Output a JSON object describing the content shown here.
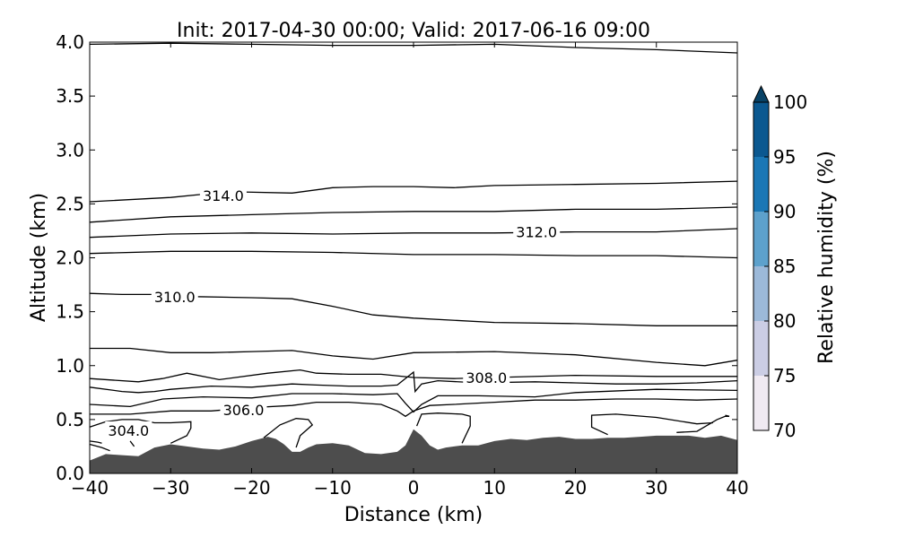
{
  "chart_data": {
    "type": "contour",
    "title": "Init: 2017-04-30 00:00; Valid: 2017-06-16 09:00",
    "xlabel": "Distance (km)",
    "ylabel": "Altitude (km)",
    "xlim": [
      -40,
      40
    ],
    "ylim": [
      0.0,
      4.0
    ],
    "xticks": [
      -40,
      -30,
      -20,
      -10,
      0,
      10,
      20,
      30,
      40
    ],
    "xtick_labels": [
      "−40",
      "−30",
      "−20",
      "−10",
      "0",
      "10",
      "20",
      "30",
      "40"
    ],
    "yticks": [
      0.0,
      0.5,
      1.0,
      1.5,
      2.0,
      2.5,
      3.0,
      3.5,
      4.0
    ],
    "ytick_labels": [
      "0.0",
      "0.5",
      "1.0",
      "1.5",
      "2.0",
      "2.5",
      "3.0",
      "3.5",
      "4.0"
    ],
    "terrain": {
      "color": "#4d4d4d",
      "x": [
        -40,
        -38,
        -36,
        -34,
        -32,
        -30,
        -28,
        -26,
        -24,
        -22,
        -20,
        -18,
        -17,
        -16,
        -15,
        -14,
        -13,
        -12,
        -10,
        -8,
        -6,
        -4,
        -2,
        -1,
        0,
        1,
        2,
        3,
        4,
        6,
        8,
        10,
        12,
        14,
        16,
        18,
        20,
        22,
        24,
        26,
        28,
        30,
        32,
        34,
        36,
        38,
        40
      ],
      "y": [
        0.12,
        0.18,
        0.17,
        0.16,
        0.24,
        0.27,
        0.25,
        0.23,
        0.22,
        0.25,
        0.3,
        0.34,
        0.32,
        0.27,
        0.2,
        0.2,
        0.24,
        0.27,
        0.28,
        0.26,
        0.19,
        0.18,
        0.2,
        0.26,
        0.41,
        0.35,
        0.26,
        0.22,
        0.24,
        0.26,
        0.26,
        0.3,
        0.32,
        0.31,
        0.33,
        0.34,
        0.32,
        0.32,
        0.33,
        0.33,
        0.34,
        0.35,
        0.35,
        0.35,
        0.33,
        0.35,
        0.31
      ]
    },
    "contours": [
      {
        "x": [
          -40,
          -30,
          -20,
          -10,
          0,
          10,
          20,
          30,
          40
        ],
        "y": [
          3.98,
          3.99,
          3.98,
          3.97,
          3.97,
          3.98,
          3.95,
          3.93,
          3.9
        ]
      },
      {
        "x": [
          -40,
          -30,
          -26,
          -21,
          -15,
          -10,
          -5,
          0,
          5,
          10,
          20,
          30,
          40
        ],
        "y": [
          2.52,
          2.56,
          2.59,
          2.61,
          2.6,
          2.65,
          2.66,
          2.66,
          2.65,
          2.67,
          2.68,
          2.69,
          2.71
        ]
      },
      {
        "x": [
          -40,
          -30,
          -20,
          -10,
          0,
          10,
          20,
          30,
          40
        ],
        "y": [
          2.33,
          2.38,
          2.4,
          2.42,
          2.43,
          2.43,
          2.45,
          2.45,
          2.47
        ]
      },
      {
        "x": [
          -40,
          -30,
          -20,
          -10,
          0,
          10,
          20,
          30,
          40
        ],
        "y": [
          2.19,
          2.22,
          2.23,
          2.22,
          2.23,
          2.23,
          2.24,
          2.24,
          2.27
        ]
      },
      {
        "x": [
          -40,
          -30,
          -20,
          -10,
          0,
          10,
          20,
          30,
          40
        ],
        "y": [
          2.04,
          2.06,
          2.06,
          2.05,
          2.03,
          2.03,
          2.02,
          2.02,
          2.0
        ]
      },
      {
        "x": [
          -40,
          -36,
          -32,
          -27,
          -20,
          -15,
          -10,
          -5,
          0,
          10,
          20,
          30,
          40
        ],
        "y": [
          1.67,
          1.66,
          1.66,
          1.64,
          1.63,
          1.62,
          1.55,
          1.47,
          1.44,
          1.4,
          1.39,
          1.37,
          1.37
        ]
      },
      {
        "x": [
          -40,
          -35,
          -30,
          -25,
          -20,
          -15,
          -10,
          -5,
          0,
          10,
          20,
          30,
          36,
          40
        ],
        "y": [
          1.16,
          1.16,
          1.12,
          1.12,
          1.13,
          1.14,
          1.09,
          1.06,
          1.12,
          1.13,
          1.1,
          1.03,
          1.0,
          1.05
        ]
      },
      {
        "x": [
          -40,
          -34,
          -31,
          -28,
          -24,
          -18,
          -14,
          -12,
          -8,
          -4,
          0,
          5,
          10,
          20,
          30,
          40
        ],
        "y": [
          0.88,
          0.85,
          0.88,
          0.93,
          0.87,
          0.93,
          0.96,
          0.93,
          0.92,
          0.92,
          0.89,
          0.88,
          0.89,
          0.91,
          0.9,
          0.9
        ]
      },
      {
        "x": [
          -40,
          -36,
          -34,
          -32,
          -30,
          -25,
          -20,
          -15,
          -12,
          -8,
          -4,
          -2,
          0,
          0.2,
          1,
          3,
          8,
          15,
          20,
          25,
          30,
          35,
          40
        ],
        "y": [
          0.8,
          0.76,
          0.75,
          0.76,
          0.78,
          0.81,
          0.8,
          0.83,
          0.82,
          0.81,
          0.81,
          0.82,
          0.94,
          0.76,
          0.83,
          0.86,
          0.84,
          0.85,
          0.84,
          0.83,
          0.83,
          0.84,
          0.86
        ]
      },
      {
        "x": [
          -40,
          -35,
          -31,
          -26,
          -20,
          -15,
          -10,
          -5,
          -2,
          -1,
          0,
          1,
          3,
          8,
          15,
          20,
          30,
          40
        ],
        "y": [
          0.64,
          0.62,
          0.69,
          0.71,
          0.7,
          0.74,
          0.74,
          0.73,
          0.74,
          0.65,
          0.57,
          0.64,
          0.72,
          0.72,
          0.71,
          0.75,
          0.78,
          0.77
        ]
      },
      {
        "x": [
          -40,
          -35,
          -30,
          -25,
          -20,
          -15,
          -12,
          -8,
          -4,
          -2,
          -1,
          0,
          2,
          5,
          10,
          15,
          20,
          25,
          30,
          35,
          40
        ],
        "y": [
          0.55,
          0.55,
          0.58,
          0.58,
          0.61,
          0.63,
          0.66,
          0.66,
          0.64,
          0.58,
          0.53,
          0.58,
          0.63,
          0.64,
          0.66,
          0.68,
          0.68,
          0.69,
          0.69,
          0.68,
          0.69
        ]
      },
      {
        "x": [
          -40,
          -38,
          -36,
          -34,
          -32,
          -30,
          -27.5,
          -27.5,
          -28,
          -30
        ],
        "y": [
          0.43,
          0.48,
          0.5,
          0.5,
          0.47,
          0.47,
          0.48,
          0.42,
          0.35,
          0.28
        ]
      },
      {
        "x": [
          -18.5,
          -16.5,
          -14.5,
          -13,
          -12.5,
          -14,
          -14.5
        ],
        "y": [
          0.33,
          0.45,
          0.51,
          0.5,
          0.45,
          0.35,
          0.24
        ]
      },
      {
        "x": [
          0.4,
          1,
          3,
          6,
          7,
          7,
          6
        ],
        "y": [
          0.44,
          0.55,
          0.56,
          0.55,
          0.53,
          0.44,
          0.28
        ]
      },
      {
        "x": [
          24,
          22,
          22,
          25,
          30,
          35,
          37
        ],
        "y": [
          0.36,
          0.43,
          0.54,
          0.55,
          0.52,
          0.46,
          0.47
        ]
      },
      {
        "x": [
          32.5,
          35,
          37.5,
          38.5,
          39,
          38.5
        ],
        "y": [
          0.38,
          0.39,
          0.5,
          0.53,
          0.53,
          0.54
        ]
      },
      {
        "x": [
          -40,
          -39,
          -38.5
        ],
        "y": [
          0.3,
          0.29,
          0.28
        ]
      },
      {
        "x": [
          -40,
          -38.5,
          -37.5
        ],
        "y": [
          0.27,
          0.24,
          0.21
        ]
      },
      {
        "x": [
          -35,
          -34.5
        ],
        "y": [
          0.3,
          0.25
        ]
      }
    ],
    "contour_labels": [
      {
        "text": "314.0",
        "x": -23.5,
        "y": 2.58
      },
      {
        "text": "312.0",
        "x": 15.2,
        "y": 2.24
      },
      {
        "text": "310.0",
        "x": -29.5,
        "y": 1.64
      },
      {
        "text": "308.0",
        "x": 9.0,
        "y": 0.89
      },
      {
        "text": "306.0",
        "x": -21.0,
        "y": 0.59
      },
      {
        "text": "304.0",
        "x": -35.2,
        "y": 0.4
      }
    ],
    "colorbar": {
      "label": "Relative humidity (%)",
      "ticks": [
        "70",
        "75",
        "80",
        "85",
        "90",
        "95",
        "100"
      ],
      "levels": [
        70,
        75,
        80,
        85,
        90,
        95,
        100
      ],
      "colors": [
        "#f0eaf2",
        "#cbcde4",
        "#9cb9d9",
        "#5da1cc",
        "#1a77b5",
        "#0b5890",
        "#084266"
      ],
      "extend": "max"
    }
  }
}
